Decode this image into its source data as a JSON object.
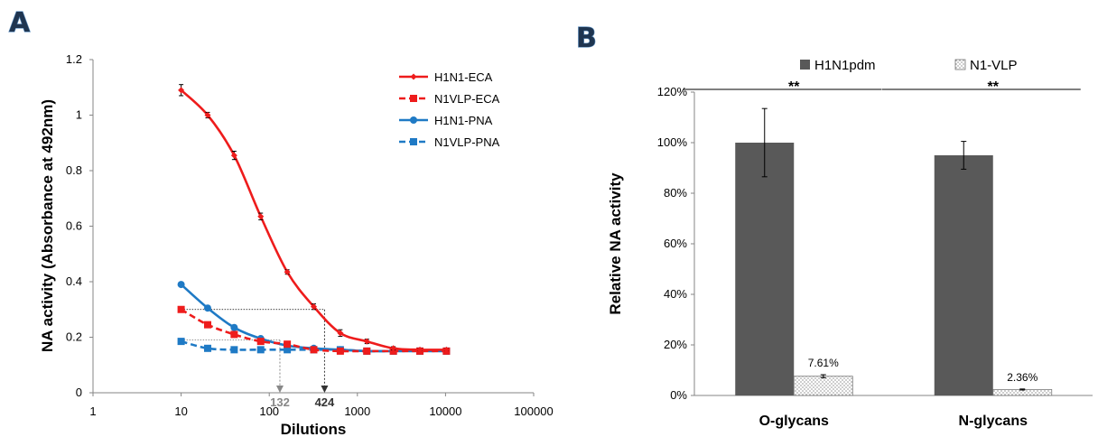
{
  "panels": {
    "a": "A",
    "b": "B"
  },
  "chart_data": [
    {
      "type": "line",
      "xlabel": "Dilutions",
      "ylabel": "NA activity (Absorbance at 492nm)",
      "x_scale": "log",
      "xlim": [
        1,
        100000
      ],
      "ylim": [
        0,
        1.2
      ],
      "x_ticks": [
        "1",
        "10",
        "100",
        "1000",
        "10000",
        "100000"
      ],
      "y_ticks": [
        "0",
        "0.2",
        "0.4",
        "0.6",
        "0.8",
        "1",
        "1.2"
      ],
      "x": [
        10,
        20,
        40,
        80,
        160,
        320,
        640,
        1280,
        2560,
        5120,
        10240
      ],
      "series": [
        {
          "name": "H1N1-ECA",
          "color": "#ee1c1c",
          "dash": "solid",
          "marker": "diamond",
          "values": [
            1.09,
            1.0,
            0.855,
            0.635,
            0.435,
            0.31,
            0.215,
            0.185,
            0.16,
            0.155,
            0.155
          ],
          "errors": [
            0.02,
            0.01,
            0.015,
            0.012,
            0.008,
            0.01,
            0.012,
            0.008,
            0.006,
            0.004,
            0.004
          ]
        },
        {
          "name": "N1VLP-ECA",
          "color": "#ee1c1c",
          "dash": "dashed",
          "marker": "square",
          "values": [
            0.3,
            0.245,
            0.21,
            0.185,
            0.175,
            0.155,
            0.15,
            0.15,
            0.15,
            0.15,
            0.15
          ],
          "errors": [
            0.006,
            0.006,
            0.006,
            0.005,
            0.005,
            0.004,
            0.004,
            0.004,
            0.004,
            0.004,
            0.004
          ]
        },
        {
          "name": "H1N1-PNA",
          "color": "#1f7ac5",
          "dash": "solid",
          "marker": "circle",
          "values": [
            0.39,
            0.305,
            0.235,
            0.195,
            0.17,
            0.16,
            0.155,
            0.15,
            0.15,
            0.15,
            0.15
          ],
          "errors": [
            0.004,
            0.004,
            0.004,
            0.004,
            0.004,
            0.004,
            0.004,
            0.004,
            0.004,
            0.004,
            0.004
          ]
        },
        {
          "name": "N1VLP-PNA",
          "color": "#1f7ac5",
          "dash": "dashed",
          "marker": "square",
          "values": [
            0.185,
            0.16,
            0.155,
            0.155,
            0.155,
            0.155,
            0.155,
            0.15,
            0.15,
            0.15,
            0.15
          ],
          "errors": [
            0.004,
            0.004,
            0.004,
            0.004,
            0.004,
            0.004,
            0.004,
            0.004,
            0.004,
            0.004,
            0.004
          ]
        }
      ],
      "annotations": [
        {
          "text": "132",
          "x": 132,
          "color": "#888888"
        },
        {
          "text": "424",
          "x": 424,
          "color": "#333333"
        }
      ],
      "legend_position": "top-right",
      "grid": false
    },
    {
      "type": "bar",
      "ylabel": "Relative NA activity",
      "categories": [
        "O-glycans",
        "N-glycans"
      ],
      "ylim": [
        0,
        120
      ],
      "y_ticks": [
        "0%",
        "20%",
        "40%",
        "60%",
        "80%",
        "100%",
        "120%"
      ],
      "series": [
        {
          "name": "H1N1pdm",
          "color": "#595959",
          "values": [
            100,
            95
          ],
          "errors": [
            13.5,
            5.5
          ]
        },
        {
          "name": "N1-VLP",
          "color": "#ffffff",
          "pattern": "dots",
          "values": [
            7.61,
            2.36
          ],
          "errors": [
            0.6,
            0.2
          ],
          "labels": [
            "7.61%",
            "2.36%"
          ]
        }
      ],
      "significance": [
        "**",
        "**"
      ],
      "legend_position": "top",
      "grid": false
    }
  ]
}
